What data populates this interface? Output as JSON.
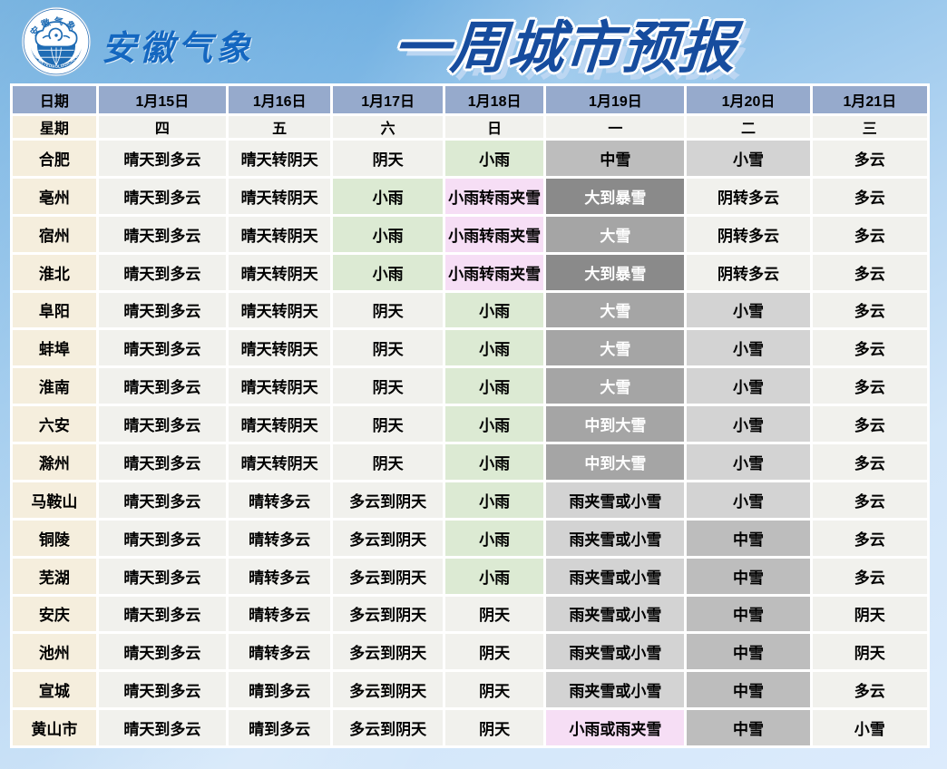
{
  "header": {
    "brand": "安徽气象",
    "title": "一周城市预报",
    "logo": {
      "name": "anhui-meteorological-bureau-logo",
      "arc_text_top": "安徽气象",
      "arc_text_bottom": "ANHUI METEOROLOGICAL BUREAU"
    }
  },
  "colors": {
    "header_row_bg": "#96aacc",
    "label_col_bg": "#f5eedd",
    "cell_default_bg": "#f1f1ed",
    "rain_green_bg": "#dcead3",
    "sleet_pink_bg": "#f6def5",
    "snow_light_gray_bg": "#d3d3d3",
    "snow_mid_gray_bg": "#bdbdbd",
    "snow_heavy_gray_bg": "#a5a5a5",
    "snow_storm_gray_bg": "#8a8a8a",
    "title_blue": "#164c9e",
    "brand_blue": "#1467c0",
    "sky_top": "#4d9bd6",
    "sky_bottom": "#dcebfc"
  },
  "forecast_table": {
    "corner_date_label": "日期",
    "corner_week_label": "星期",
    "dates": [
      "1月15日",
      "1月16日",
      "1月17日",
      "1月18日",
      "1月19日",
      "1月20日",
      "1月21日"
    ],
    "weekdays": [
      "四",
      "五",
      "六",
      "日",
      "一",
      "二",
      "三"
    ],
    "style_legend": {
      "plain": "default light cell",
      "green": "light rain",
      "pink": "rain/sleet mix",
      "g1": "light snow gray",
      "g2": "moderate snow gray",
      "g3": "heavy snow gray (white text)",
      "g4": "blizzard gray (white text)"
    },
    "rows": [
      {
        "city": "合肥",
        "cells": [
          {
            "t": "晴天到多云",
            "s": "plain"
          },
          {
            "t": "晴天转阴天",
            "s": "plain"
          },
          {
            "t": "阴天",
            "s": "plain"
          },
          {
            "t": "小雨",
            "s": "green"
          },
          {
            "t": "中雪",
            "s": "g2"
          },
          {
            "t": "小雪",
            "s": "g1"
          },
          {
            "t": "多云",
            "s": "plain"
          }
        ]
      },
      {
        "city": "亳州",
        "cells": [
          {
            "t": "晴天到多云",
            "s": "plain"
          },
          {
            "t": "晴天转阴天",
            "s": "plain"
          },
          {
            "t": "小雨",
            "s": "green"
          },
          {
            "t": "小雨转雨夹雪",
            "s": "pink"
          },
          {
            "t": "大到暴雪",
            "s": "g4"
          },
          {
            "t": "阴转多云",
            "s": "plain"
          },
          {
            "t": "多云",
            "s": "plain"
          }
        ]
      },
      {
        "city": "宿州",
        "cells": [
          {
            "t": "晴天到多云",
            "s": "plain"
          },
          {
            "t": "晴天转阴天",
            "s": "plain"
          },
          {
            "t": "小雨",
            "s": "green"
          },
          {
            "t": "小雨转雨夹雪",
            "s": "pink"
          },
          {
            "t": "大雪",
            "s": "g3"
          },
          {
            "t": "阴转多云",
            "s": "plain"
          },
          {
            "t": "多云",
            "s": "plain"
          }
        ]
      },
      {
        "city": "淮北",
        "cells": [
          {
            "t": "晴天到多云",
            "s": "plain"
          },
          {
            "t": "晴天转阴天",
            "s": "plain"
          },
          {
            "t": "小雨",
            "s": "green"
          },
          {
            "t": "小雨转雨夹雪",
            "s": "pink"
          },
          {
            "t": "大到暴雪",
            "s": "g4"
          },
          {
            "t": "阴转多云",
            "s": "plain"
          },
          {
            "t": "多云",
            "s": "plain"
          }
        ]
      },
      {
        "city": "阜阳",
        "cells": [
          {
            "t": "晴天到多云",
            "s": "plain"
          },
          {
            "t": "晴天转阴天",
            "s": "plain"
          },
          {
            "t": "阴天",
            "s": "plain"
          },
          {
            "t": "小雨",
            "s": "green"
          },
          {
            "t": "大雪",
            "s": "g3"
          },
          {
            "t": "小雪",
            "s": "g1"
          },
          {
            "t": "多云",
            "s": "plain"
          }
        ]
      },
      {
        "city": "蚌埠",
        "cells": [
          {
            "t": "晴天到多云",
            "s": "plain"
          },
          {
            "t": "晴天转阴天",
            "s": "plain"
          },
          {
            "t": "阴天",
            "s": "plain"
          },
          {
            "t": "小雨",
            "s": "green"
          },
          {
            "t": "大雪",
            "s": "g3"
          },
          {
            "t": "小雪",
            "s": "g1"
          },
          {
            "t": "多云",
            "s": "plain"
          }
        ]
      },
      {
        "city": "淮南",
        "cells": [
          {
            "t": "晴天到多云",
            "s": "plain"
          },
          {
            "t": "晴天转阴天",
            "s": "plain"
          },
          {
            "t": "阴天",
            "s": "plain"
          },
          {
            "t": "小雨",
            "s": "green"
          },
          {
            "t": "大雪",
            "s": "g3"
          },
          {
            "t": "小雪",
            "s": "g1"
          },
          {
            "t": "多云",
            "s": "plain"
          }
        ]
      },
      {
        "city": "六安",
        "cells": [
          {
            "t": "晴天到多云",
            "s": "plain"
          },
          {
            "t": "晴天转阴天",
            "s": "plain"
          },
          {
            "t": "阴天",
            "s": "plain"
          },
          {
            "t": "小雨",
            "s": "green"
          },
          {
            "t": "中到大雪",
            "s": "g3"
          },
          {
            "t": "小雪",
            "s": "g1"
          },
          {
            "t": "多云",
            "s": "plain"
          }
        ]
      },
      {
        "city": "滁州",
        "cells": [
          {
            "t": "晴天到多云",
            "s": "plain"
          },
          {
            "t": "晴天转阴天",
            "s": "plain"
          },
          {
            "t": "阴天",
            "s": "plain"
          },
          {
            "t": "小雨",
            "s": "green"
          },
          {
            "t": "中到大雪",
            "s": "g3"
          },
          {
            "t": "小雪",
            "s": "g1"
          },
          {
            "t": "多云",
            "s": "plain"
          }
        ]
      },
      {
        "city": "马鞍山",
        "cells": [
          {
            "t": "晴天到多云",
            "s": "plain"
          },
          {
            "t": "晴转多云",
            "s": "plain"
          },
          {
            "t": "多云到阴天",
            "s": "plain"
          },
          {
            "t": "小雨",
            "s": "green"
          },
          {
            "t": "雨夹雪或小雪",
            "s": "g1"
          },
          {
            "t": "小雪",
            "s": "g1"
          },
          {
            "t": "多云",
            "s": "plain"
          }
        ]
      },
      {
        "city": "铜陵",
        "cells": [
          {
            "t": "晴天到多云",
            "s": "plain"
          },
          {
            "t": "晴转多云",
            "s": "plain"
          },
          {
            "t": "多云到阴天",
            "s": "plain"
          },
          {
            "t": "小雨",
            "s": "green"
          },
          {
            "t": "雨夹雪或小雪",
            "s": "g1"
          },
          {
            "t": "中雪",
            "s": "g2"
          },
          {
            "t": "多云",
            "s": "plain"
          }
        ]
      },
      {
        "city": "芜湖",
        "cells": [
          {
            "t": "晴天到多云",
            "s": "plain"
          },
          {
            "t": "晴转多云",
            "s": "plain"
          },
          {
            "t": "多云到阴天",
            "s": "plain"
          },
          {
            "t": "小雨",
            "s": "green"
          },
          {
            "t": "雨夹雪或小雪",
            "s": "g1"
          },
          {
            "t": "中雪",
            "s": "g2"
          },
          {
            "t": "多云",
            "s": "plain"
          }
        ]
      },
      {
        "city": "安庆",
        "cells": [
          {
            "t": "晴天到多云",
            "s": "plain"
          },
          {
            "t": "晴转多云",
            "s": "plain"
          },
          {
            "t": "多云到阴天",
            "s": "plain"
          },
          {
            "t": "阴天",
            "s": "plain"
          },
          {
            "t": "雨夹雪或小雪",
            "s": "g1"
          },
          {
            "t": "中雪",
            "s": "g2"
          },
          {
            "t": "阴天",
            "s": "plain"
          }
        ]
      },
      {
        "city": "池州",
        "cells": [
          {
            "t": "晴天到多云",
            "s": "plain"
          },
          {
            "t": "晴转多云",
            "s": "plain"
          },
          {
            "t": "多云到阴天",
            "s": "plain"
          },
          {
            "t": "阴天",
            "s": "plain"
          },
          {
            "t": "雨夹雪或小雪",
            "s": "g1"
          },
          {
            "t": "中雪",
            "s": "g2"
          },
          {
            "t": "阴天",
            "s": "plain"
          }
        ]
      },
      {
        "city": "宣城",
        "cells": [
          {
            "t": "晴天到多云",
            "s": "plain"
          },
          {
            "t": "晴到多云",
            "s": "plain"
          },
          {
            "t": "多云到阴天",
            "s": "plain"
          },
          {
            "t": "阴天",
            "s": "plain"
          },
          {
            "t": "雨夹雪或小雪",
            "s": "g1"
          },
          {
            "t": "中雪",
            "s": "g2"
          },
          {
            "t": "多云",
            "s": "plain"
          }
        ]
      },
      {
        "city": "黄山市",
        "cells": [
          {
            "t": "晴天到多云",
            "s": "plain"
          },
          {
            "t": "晴到多云",
            "s": "plain"
          },
          {
            "t": "多云到阴天",
            "s": "plain"
          },
          {
            "t": "阴天",
            "s": "plain"
          },
          {
            "t": "小雨或雨夹雪",
            "s": "pink"
          },
          {
            "t": "中雪",
            "s": "g2"
          },
          {
            "t": "小雪",
            "s": "plain"
          }
        ]
      }
    ]
  }
}
